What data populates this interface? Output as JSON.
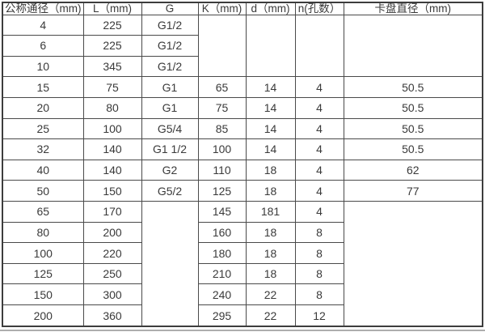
{
  "colors": {
    "border": "#4a4a4a",
    "border_outer": "#3d3d3d",
    "text": "#3a3a3a",
    "background": "#ffffff",
    "page_edge": "#adadad"
  },
  "table": {
    "headers": [
      "公称通径（mm)",
      "L（mm)",
      "G",
      "K（mm)",
      "d（mm)",
      "n(孔数）",
      "卡盘直径（mm)"
    ],
    "rows": [
      [
        "4",
        "225",
        "G1/2",
        {
          "v": "",
          "rowspan": 3
        },
        {
          "v": "",
          "rowspan": 3
        },
        {
          "v": "",
          "rowspan": 3
        },
        {
          "v": "",
          "rowspan": 3
        }
      ],
      [
        "6",
        "225",
        "G1/2",
        null,
        null,
        null,
        null
      ],
      [
        "10",
        "345",
        "G1/2",
        null,
        null,
        null,
        null
      ],
      [
        "15",
        "75",
        "G1",
        "65",
        "14",
        "4",
        "50.5"
      ],
      [
        "20",
        "80",
        "G1",
        "75",
        "14",
        "4",
        "50.5"
      ],
      [
        "25",
        "100",
        "G5/4",
        "85",
        "14",
        "4",
        "50.5"
      ],
      [
        "32",
        "140",
        "G1 1/2",
        "100",
        "14",
        "4",
        "50.5"
      ],
      [
        "40",
        "140",
        "G2",
        "110",
        "18",
        "4",
        "62"
      ],
      [
        "50",
        "150",
        "G5/2",
        "125",
        "18",
        "4",
        "77"
      ],
      [
        "65",
        "170",
        {
          "v": "",
          "rowspan": 6
        },
        "145",
        "181",
        "4",
        {
          "v": "",
          "rowspan": 6
        }
      ],
      [
        "80",
        "200",
        null,
        "160",
        "18",
        "8",
        null
      ],
      [
        "100",
        "220",
        null,
        "180",
        "18",
        "8",
        null
      ],
      [
        "125",
        "250",
        null,
        "210",
        "18",
        "8",
        null
      ],
      [
        "150",
        "300",
        null,
        "240",
        "22",
        "8",
        null
      ],
      [
        "200",
        "360",
        null,
        "295",
        "22",
        "12",
        null
      ]
    ]
  },
  "chart_data": {
    "type": "table",
    "title": "",
    "columns": [
      "公称通径（mm)",
      "L（mm)",
      "G",
      "K（mm)",
      "d（mm)",
      "n(孔数）",
      "卡盘直径（mm)"
    ],
    "rows": [
      [
        "4",
        "225",
        "G1/2",
        "",
        "",
        "",
        ""
      ],
      [
        "6",
        "225",
        "G1/2",
        "",
        "",
        "",
        ""
      ],
      [
        "10",
        "345",
        "G1/2",
        "",
        "",
        "",
        ""
      ],
      [
        "15",
        "75",
        "G1",
        "65",
        "14",
        "4",
        "50.5"
      ],
      [
        "20",
        "80",
        "G1",
        "75",
        "14",
        "4",
        "50.5"
      ],
      [
        "25",
        "100",
        "G5/4",
        "85",
        "14",
        "4",
        "50.5"
      ],
      [
        "32",
        "140",
        "G1 1/2",
        "100",
        "14",
        "4",
        "50.5"
      ],
      [
        "40",
        "140",
        "G2",
        "110",
        "18",
        "4",
        "62"
      ],
      [
        "50",
        "150",
        "G5/2",
        "125",
        "18",
        "4",
        "77"
      ],
      [
        "65",
        "170",
        "",
        "145",
        "181",
        "4",
        ""
      ],
      [
        "80",
        "200",
        "",
        "160",
        "18",
        "8",
        ""
      ],
      [
        "100",
        "220",
        "",
        "180",
        "18",
        "8",
        ""
      ],
      [
        "125",
        "250",
        "",
        "210",
        "18",
        "8",
        ""
      ],
      [
        "150",
        "300",
        "",
        "240",
        "22",
        "8",
        ""
      ],
      [
        "200",
        "360",
        "",
        "295",
        "22",
        "12",
        ""
      ]
    ],
    "layout_hints": {
      "merged_empty_cells": "columns K,d,n,卡盘直径 merged over rows 4-10; columns G and 卡盘直径 merged over rows 65-200",
      "grid": true,
      "all_cells_centered": true
    }
  }
}
